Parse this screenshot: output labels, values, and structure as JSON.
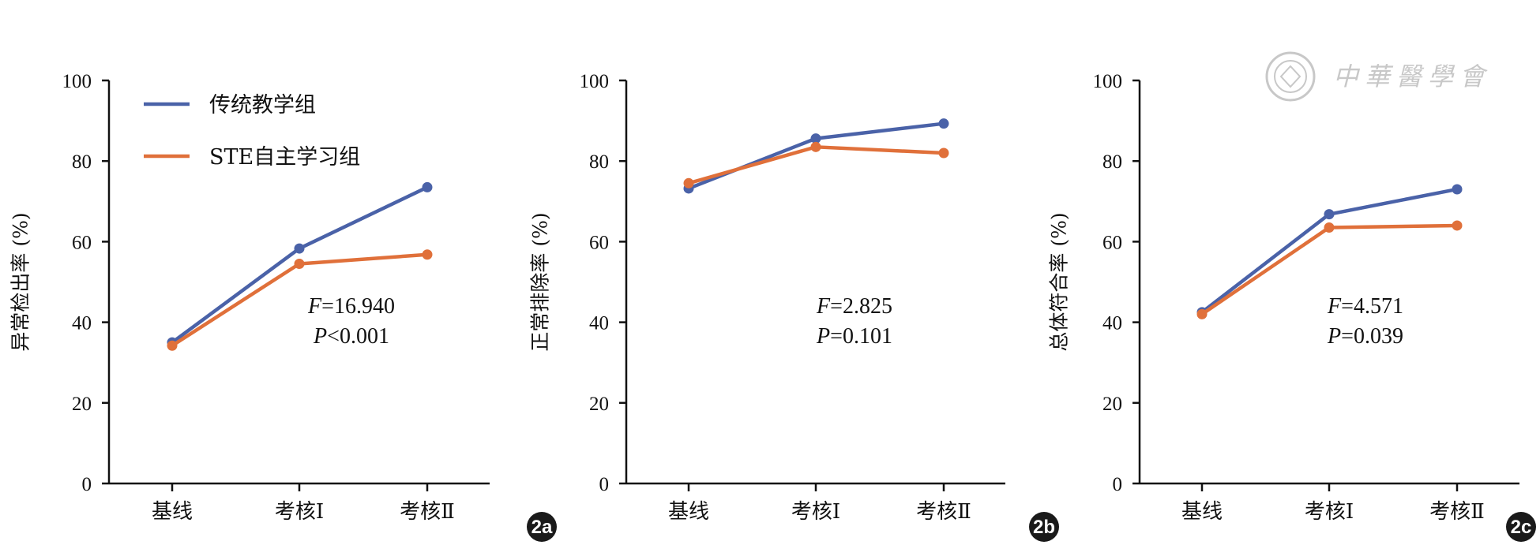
{
  "colors": {
    "series_1": "#4a62a8",
    "series_2": "#e0703a",
    "axis": "#111111",
    "badge": "#1a1a1a",
    "watermark": "#c8c8c8"
  },
  "watermark": {
    "text": "中華醫學會",
    "icon": "society-seal-icon"
  },
  "chart_data": [
    {
      "type": "line",
      "panel_label": "2a",
      "ylabel": "异常检出率 (%)",
      "ylim": [
        0,
        100
      ],
      "yticks": [
        "0",
        "20",
        "40",
        "60",
        "80",
        "100"
      ],
      "categories": [
        "基线",
        "考核Ⅰ",
        "考核Ⅱ"
      ],
      "series": [
        {
          "name": "传统教学组",
          "values": [
            35,
            58.3,
            73.5
          ]
        },
        {
          "name": "STE自主学习组",
          "values": [
            34.2,
            54.5,
            56.8
          ]
        }
      ],
      "legend": {
        "position": "top-left",
        "entries": [
          "传统教学组",
          "STE自主学习组"
        ]
      },
      "stats": {
        "f_label": "F",
        "f_value": "=16.940",
        "p_label": "P",
        "p_value": "<0.001"
      }
    },
    {
      "type": "line",
      "panel_label": "2b",
      "ylabel": "正常排除率 (%)",
      "ylim": [
        0,
        100
      ],
      "yticks": [
        "0",
        "20",
        "40",
        "60",
        "80",
        "100"
      ],
      "categories": [
        "基线",
        "考核Ⅰ",
        "考核Ⅱ"
      ],
      "series": [
        {
          "name": "传统教学组",
          "values": [
            73.2,
            85.6,
            89.3
          ]
        },
        {
          "name": "STE自主学习组",
          "values": [
            74.5,
            83.5,
            82
          ]
        }
      ],
      "stats": {
        "f_label": "F",
        "f_value": "=2.825",
        "p_label": "P",
        "p_value": "=0.101"
      }
    },
    {
      "type": "line",
      "panel_label": "2c",
      "ylabel": "总体符合率 (%)",
      "ylim": [
        0,
        100
      ],
      "yticks": [
        "0",
        "20",
        "40",
        "60",
        "80",
        "100"
      ],
      "categories": [
        "基线",
        "考核Ⅰ",
        "考核Ⅱ"
      ],
      "series": [
        {
          "name": "传统教学组",
          "values": [
            42.5,
            66.8,
            73
          ]
        },
        {
          "name": "STE自主学习组",
          "values": [
            42,
            63.5,
            64
          ]
        }
      ],
      "stats": {
        "f_label": "F",
        "f_value": "=4.571",
        "p_label": "P",
        "p_value": "=0.039"
      }
    }
  ]
}
